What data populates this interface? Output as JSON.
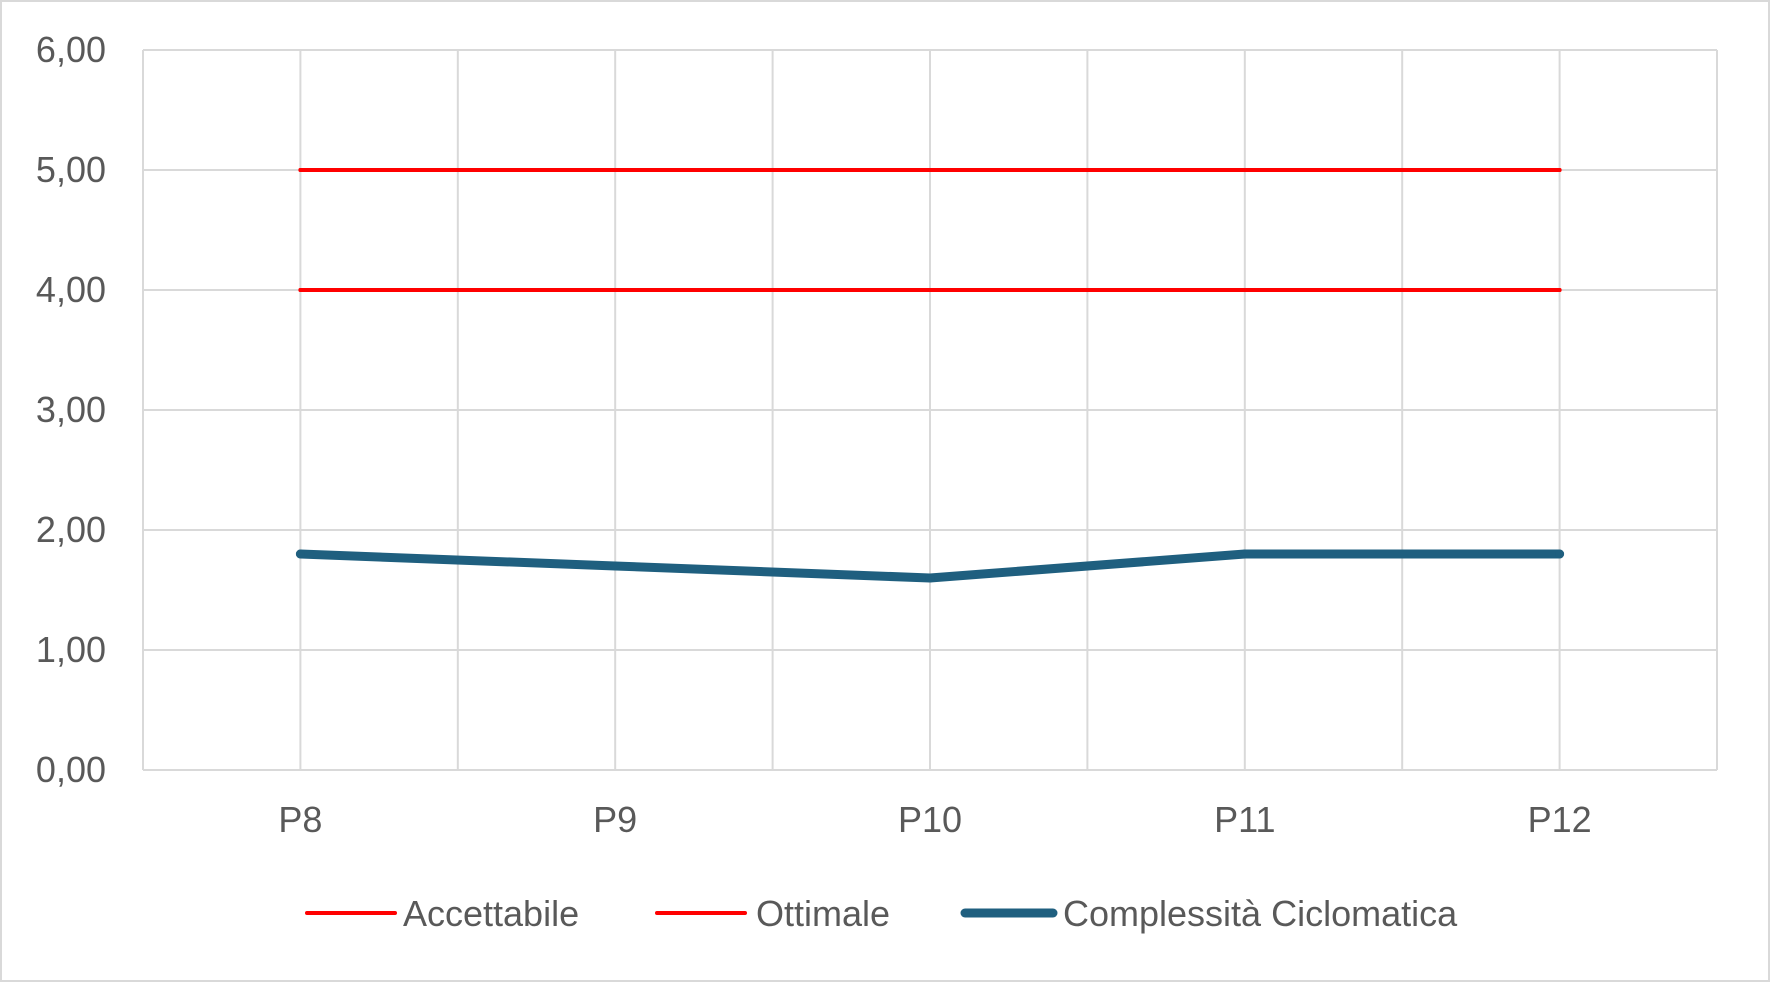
{
  "chart_data": {
    "type": "line",
    "categories": [
      "P8",
      "P9",
      "P10",
      "P11",
      "P12"
    ],
    "series": [
      {
        "name": "Accettabile",
        "values": [
          5,
          5,
          5,
          5,
          5
        ],
        "color": "#ff0000"
      },
      {
        "name": "Ottimale",
        "values": [
          4,
          4,
          4,
          4,
          4
        ],
        "color": "#ff0000"
      },
      {
        "name": "Complessità Ciclomatica",
        "values": [
          1.8,
          1.7,
          1.6,
          1.8,
          1.8
        ],
        "color": "#1f5f7f"
      }
    ],
    "y_ticks": [
      "0,00",
      "1,00",
      "2,00",
      "3,00",
      "4,00",
      "5,00",
      "6,00"
    ],
    "ylim": [
      0,
      6
    ],
    "grid": true,
    "legend_position": "bottom",
    "gridline_color": "#d9d9d9"
  }
}
